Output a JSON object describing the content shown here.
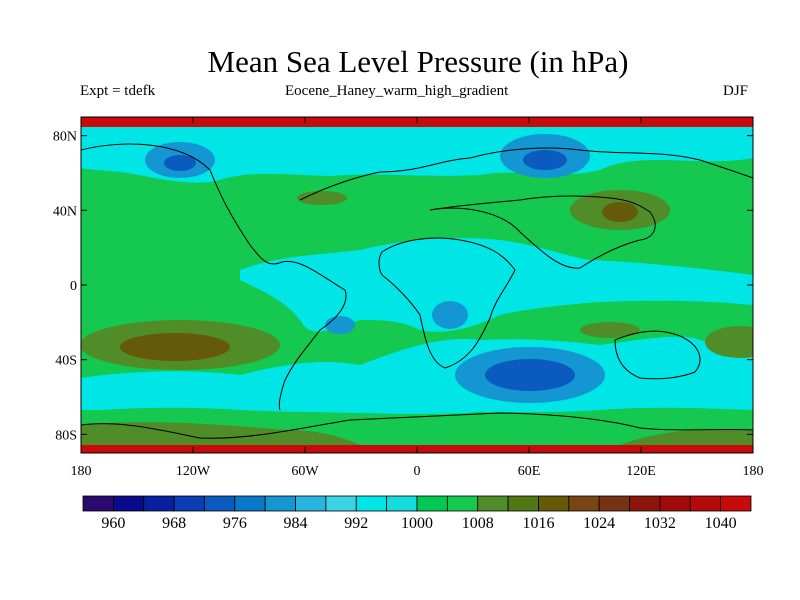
{
  "title": "Mean Sea Level Pressure (in hPa)",
  "left_subtitle": "Expt = tdefk",
  "center_subtitle": "Eocene_Haney_warm_high_gradient",
  "right_subtitle": "DJF",
  "lat_ticks": [
    "80N",
    "40N",
    "0",
    "40S",
    "80S"
  ],
  "lon_ticks": [
    "180",
    "120W",
    "60W",
    "0",
    "60E",
    "120E",
    "180"
  ],
  "colorbar": {
    "labels": [
      "960",
      "968",
      "976",
      "984",
      "992",
      "1000",
      "1008",
      "1016",
      "1024",
      "1032",
      "1040"
    ],
    "colors": [
      "#2a0a6e",
      "#0a0a8c",
      "#0a1ea0",
      "#0a3cb4",
      "#0a5ac0",
      "#0a78c8",
      "#1496d2",
      "#28b4e0",
      "#3cd2e6",
      "#00e6e6",
      "#14dcdc",
      "#00c850",
      "#14c850",
      "#508c28",
      "#507814",
      "#645a0a",
      "#784614",
      "#783214",
      "#8c140a",
      "#a00a0a",
      "#b40a0a",
      "#c80a0a"
    ]
  },
  "map_colors": {
    "low_deep": "#0a5ac0",
    "low": "#1496d2",
    "low_mid": "#00e6e6",
    "mid": "#14c850",
    "high": "#508c28",
    "high_deep": "#645a0a",
    "max": "#c80a0a"
  }
}
